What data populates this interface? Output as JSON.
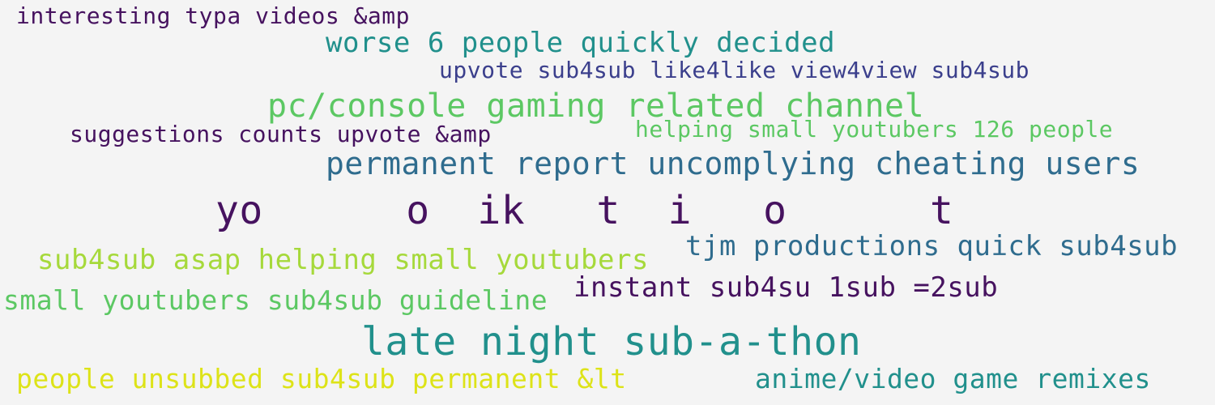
{
  "palette": {
    "background": "#f4f4f4",
    "deep_purple": "#46125f",
    "indigo": "#3b3f8c",
    "slate_blue": "#2f6c8e",
    "teal": "#21908c",
    "green": "#5cc863",
    "lime": "#a6d93b",
    "yellow": "#dde318"
  },
  "phrases": [
    {
      "id": "p1",
      "text": "interesting typa videos &amp",
      "color": "#46125f"
    },
    {
      "id": "p2",
      "text": "worse 6 people quickly decided",
      "color": "#21908c"
    },
    {
      "id": "p3",
      "text": "upvote sub4sub like4like view4view sub4sub",
      "color": "#3b3f8c"
    },
    {
      "id": "p4",
      "text": "pc/console gaming related channel",
      "color": "#5cc863"
    },
    {
      "id": "p5",
      "text": "suggestions counts upvote &amp",
      "color": "#46125f"
    },
    {
      "id": "p6",
      "text": "helping small youtubers 126 people",
      "color": "#5cc863"
    },
    {
      "id": "p7",
      "text": "permanent report uncomplying cheating users",
      "color": "#2f6c8e"
    },
    {
      "id": "p8",
      "text": "yo      o  ik   t  i   o      t",
      "color": "#46125f"
    },
    {
      "id": "p9",
      "text": "tjm productions quick sub4sub",
      "color": "#2f6c8e"
    },
    {
      "id": "p10",
      "text": "sub4sub asap helping small youtubers",
      "color": "#a6d93b"
    },
    {
      "id": "p11",
      "text": "instant sub4su 1sub =2sub",
      "color": "#46125f"
    },
    {
      "id": "p12",
      "text": "small youtubers sub4sub guideline",
      "color": "#5cc863"
    },
    {
      "id": "p13",
      "text": "late night sub-a-thon",
      "color": "#21908c"
    },
    {
      "id": "p14",
      "text": "people unsubbed sub4sub permanent &lt",
      "color": "#dde318"
    },
    {
      "id": "p15",
      "text": "anime/video game remixes",
      "color": "#21908c"
    }
  ]
}
